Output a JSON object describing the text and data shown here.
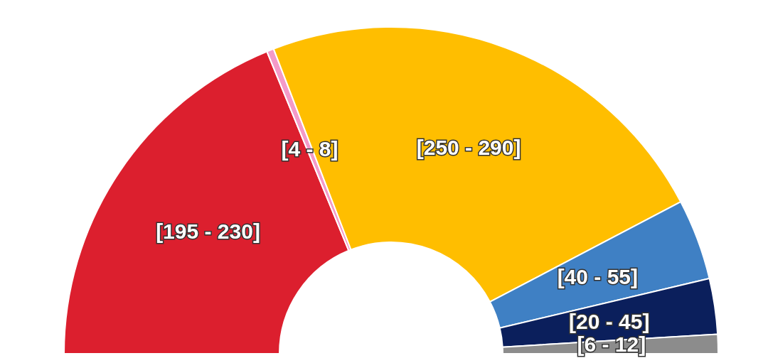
{
  "chart_data": {
    "type": "donut",
    "categories": [
      null,
      null,
      null,
      null,
      null,
      null
    ],
    "values": [
      37.6,
      0.7,
      46.3,
      8.0,
      5.5,
      1.9
    ],
    "colors": [
      "#dc1f2e",
      "#f49ac8",
      "#ffbe00",
      "#3f80c4",
      "#0b1f5c",
      "#8c8c8c"
    ],
    "value_labels": [
      "[195 - 230]",
      "[4 - 8]",
      "[250 - 290]",
      "[40 - 55]",
      "[20 - 45]",
      "[6 - 12]"
    ]
  }
}
